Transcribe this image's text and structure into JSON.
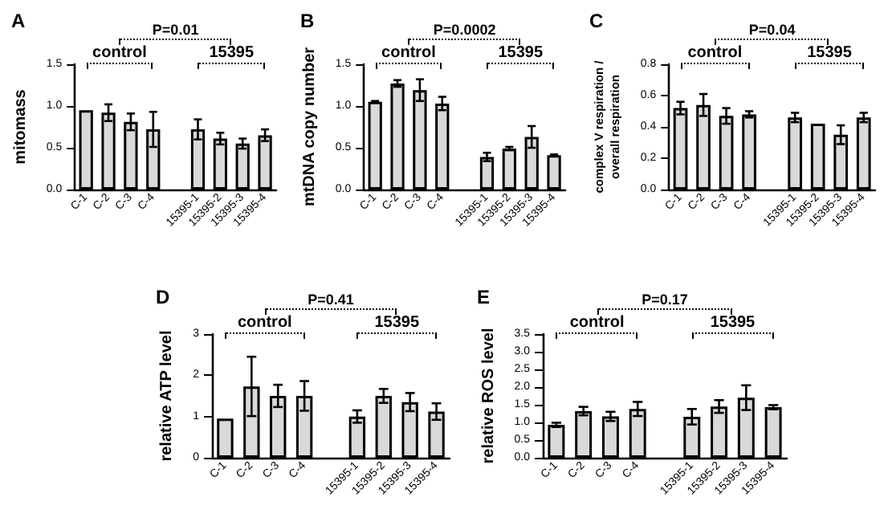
{
  "chart_data": [
    {
      "type": "bar",
      "title": "A",
      "ylabel": "mitomass",
      "categories": [
        "C-1",
        "C-2",
        "C-3",
        "C-4",
        null,
        "15395-1",
        "15395-2",
        "15395-3",
        "15395-4"
      ],
      "values": [
        0.95,
        0.92,
        0.81,
        0.72,
        null,
        0.72,
        0.61,
        0.55,
        0.65
      ],
      "errors": [
        null,
        0.1,
        0.1,
        0.21,
        null,
        0.12,
        0.07,
        0.06,
        0.07
      ],
      "color": "#d9d9d9",
      "ylim": [
        0,
        1.5
      ],
      "yticks": [
        {
          "value": 0,
          "label": "0.0"
        },
        0.5,
        {
          "value": 1,
          "label": "1.0"
        },
        1.5
      ],
      "annotations": [
        "P=0.01",
        "control",
        "15395"
      ]
    },
    {
      "type": "bar",
      "title": "B",
      "ylabel": "mtDNA copy number",
      "categories": [
        "C-1",
        "C-2",
        "C-3",
        "C-4",
        null,
        "15395-1",
        "15395-2",
        "15395-3",
        "15395-4"
      ],
      "values": [
        1.05,
        1.27,
        1.19,
        1.03,
        null,
        0.39,
        0.49,
        0.63,
        0.41
      ],
      "errors": [
        0.01,
        0.04,
        0.13,
        0.08,
        null,
        0.05,
        0.02,
        0.13,
        0.01
      ],
      "color": "#d9d9d9",
      "ylim": [
        0,
        1.5
      ],
      "yticks": [
        {
          "value": 0,
          "label": "0.0"
        },
        0.5,
        {
          "value": 1,
          "label": "1.0"
        },
        1.5
      ],
      "annotations": [
        "P=0.0002",
        "control",
        "15395"
      ]
    },
    {
      "type": "bar",
      "title": "C",
      "ylabel": "complex V respiration /\noverall respiration",
      "categories": [
        "C-1",
        "C-2",
        "C-3",
        "C-4",
        null,
        "15395-1",
        "15395-2",
        "15395-3",
        "15395-4"
      ],
      "values": [
        0.52,
        0.54,
        0.47,
        0.48,
        null,
        0.46,
        0.42,
        0.35,
        0.46
      ],
      "errors": [
        0.04,
        0.07,
        0.05,
        0.02,
        null,
        0.03,
        null,
        0.06,
        0.03
      ],
      "color": "#d9d9d9",
      "ylim": [
        0,
        0.8
      ],
      "yticks": [
        {
          "value": 0,
          "label": "0.0"
        },
        0.2,
        0.4,
        0.6,
        0.8
      ],
      "annotations": [
        "P=0.04",
        "control",
        "15395"
      ]
    },
    {
      "type": "bar",
      "title": "D",
      "ylabel": "relative ATP level",
      "categories": [
        "C-1",
        "C-2",
        "C-3",
        "C-4",
        null,
        "15395-1",
        "15395-2",
        "15395-3",
        "15395-4"
      ],
      "values": [
        0.95,
        1.73,
        1.5,
        1.5,
        null,
        1.0,
        1.5,
        1.35,
        1.12
      ],
      "errors": [
        null,
        0.72,
        0.27,
        0.36,
        null,
        0.15,
        0.17,
        0.22,
        0.2
      ],
      "color": "#d9d9d9",
      "ylim": [
        0,
        3
      ],
      "yticks": [
        0,
        1,
        2,
        3
      ],
      "annotations": [
        "P=0.41",
        "control",
        "15395"
      ]
    },
    {
      "type": "bar",
      "title": "E",
      "ylabel": "relative ROS level",
      "categories": [
        "C-1",
        "C-2",
        "C-3",
        "C-4",
        null,
        "15395-1",
        "15395-2",
        "15395-3",
        "15395-4"
      ],
      "values": [
        0.93,
        1.32,
        1.17,
        1.38,
        null,
        1.16,
        1.45,
        1.7,
        1.43
      ],
      "errors": [
        0.06,
        0.12,
        0.13,
        0.2,
        null,
        0.22,
        0.18,
        0.35,
        0.06
      ],
      "color": "#d9d9d9",
      "ylim": [
        0,
        3.5
      ],
      "yticks": [
        {
          "value": 0,
          "label": "0.0"
        },
        0.5,
        {
          "value": 1,
          "label": "1.0"
        },
        1.5,
        {
          "value": 2,
          "label": "2.0"
        },
        2.5,
        {
          "value": 3,
          "label": "3.0"
        },
        3.5
      ],
      "annotations": [
        "P=0.17",
        "control",
        "15395"
      ]
    }
  ]
}
